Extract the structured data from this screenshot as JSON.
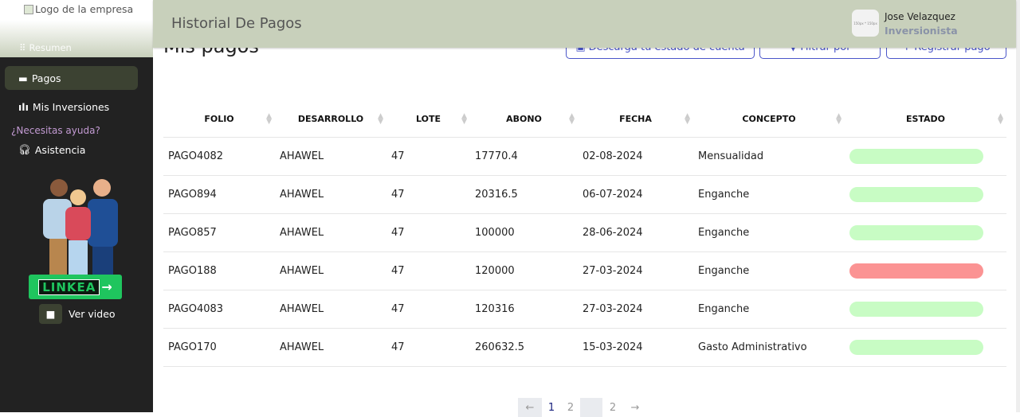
{
  "sidebar": {
    "logo_alt": "Logo de la empresa",
    "items": [
      {
        "label": "Resumen",
        "icon": "grid-icon"
      },
      {
        "label": "Pagos",
        "icon": "card-icon",
        "active": true
      },
      {
        "label": "Mis Inversiones",
        "icon": "bar-chart-icon"
      }
    ],
    "help_heading": "¿Necesitas ayuda?",
    "support": "Asistencia",
    "linkea": "LINKEA",
    "video": "Ver video"
  },
  "header": {
    "title": "Historial De Pagos",
    "avatar_text": "150px * 150px",
    "user_name": "Jose Velazquez",
    "user_role": "Inversionista"
  },
  "main": {
    "title": "Mis pagos",
    "buttons": {
      "download": "Descarga tu estado de cuenta",
      "filter": "Filtrar por",
      "register": "Registrar pago"
    },
    "columns": [
      "FOLIO",
      "DESARROLLO",
      "LOTE",
      "ABONO",
      "FECHA",
      "CONCEPTO",
      "ESTADO"
    ],
    "rows": [
      {
        "folio": "PAGO4082",
        "desarrollo": "AHAWEL",
        "lote": "47",
        "abono": "17770.4",
        "fecha": "02-08-2024",
        "concepto": "Mensualidad",
        "estado_color": "#c8fcc4"
      },
      {
        "folio": "PAGO894",
        "desarrollo": "AHAWEL",
        "lote": "47",
        "abono": "20316.5",
        "fecha": "06-07-2024",
        "concepto": "Enganche",
        "estado_color": "#c8fcc4"
      },
      {
        "folio": "PAGO857",
        "desarrollo": "AHAWEL",
        "lote": "47",
        "abono": "100000",
        "fecha": "28-06-2024",
        "concepto": "Enganche",
        "estado_color": "#c8fcc4"
      },
      {
        "folio": "PAGO188",
        "desarrollo": "AHAWEL",
        "lote": "47",
        "abono": "120000",
        "fecha": "27-03-2024",
        "concepto": "Enganche",
        "estado_color": "#fb9393"
      },
      {
        "folio": "PAGO4083",
        "desarrollo": "AHAWEL",
        "lote": "47",
        "abono": "120316",
        "fecha": "27-03-2024",
        "concepto": "Enganche",
        "estado_color": "#c8fcc4"
      },
      {
        "folio": "PAGO170",
        "desarrollo": "AHAWEL",
        "lote": "47",
        "abono": "260632.5",
        "fecha": "15-03-2024",
        "concepto": "Gasto Administrativo",
        "estado_color": "#c8fcc4"
      }
    ],
    "pagination": {
      "prev": "←",
      "pages": [
        "1",
        "2",
        "",
        "2"
      ],
      "next": "→",
      "current": "1"
    }
  }
}
